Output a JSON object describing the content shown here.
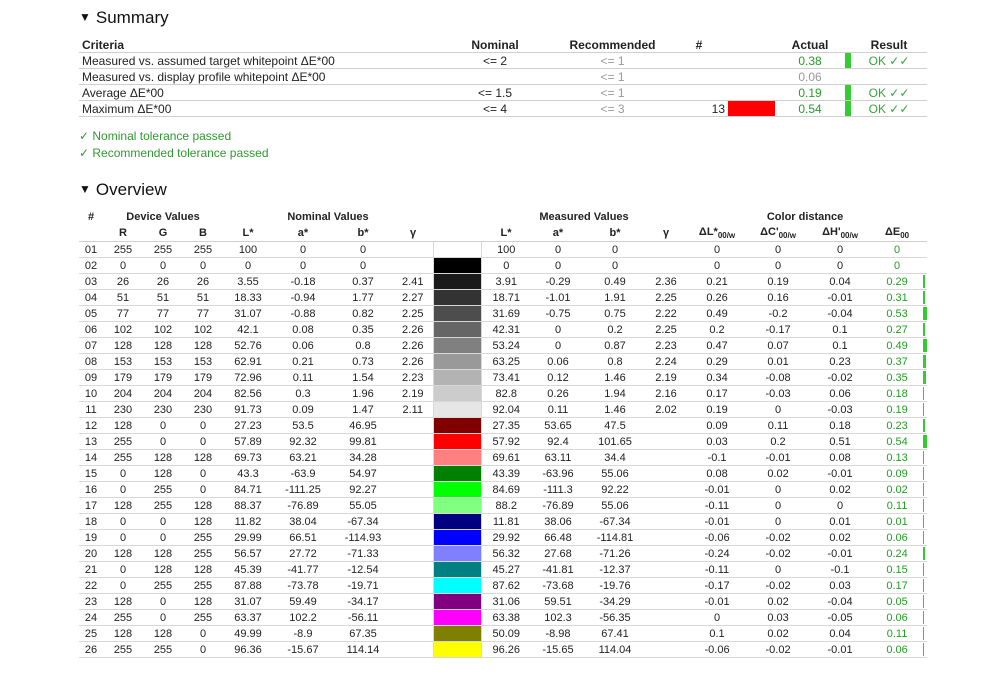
{
  "summary": {
    "heading": "Summary",
    "headers": [
      "Criteria",
      "Nominal",
      "Recommended",
      "#",
      "Actual",
      "Result"
    ],
    "rows": [
      {
        "criteria": "Measured vs. assumed target whitepoint ΔE*00",
        "nominal": "<= 2",
        "recommended": "<= 1",
        "num": "",
        "swatch": "",
        "actual": "0.38",
        "actual_green": true,
        "bar": true,
        "result": "OK ✓✓"
      },
      {
        "criteria": "Measured vs. display profile whitepoint ΔE*00",
        "nominal": "",
        "recommended": "<= 1",
        "num": "",
        "swatch": "",
        "actual": "0.06",
        "actual_green": false,
        "bar": false,
        "result": ""
      },
      {
        "criteria": "Average ΔE*00",
        "nominal": "<= 1.5",
        "recommended": "<= 1",
        "num": "",
        "swatch": "",
        "actual": "0.19",
        "actual_green": true,
        "bar": true,
        "result": "OK ✓✓"
      },
      {
        "criteria": "Maximum ΔE*00",
        "nominal": "<= 4",
        "recommended": "<= 3",
        "num": "13",
        "swatch": "#ff0000",
        "actual": "0.54",
        "actual_green": true,
        "bar": true,
        "result": "OK ✓✓"
      }
    ],
    "passed": [
      "✓ Nominal tolerance passed",
      "✓ Recommended tolerance passed"
    ]
  },
  "overview": {
    "heading": "Overview",
    "groups": {
      "num": "#",
      "device": "Device Values",
      "nominal": "Nominal Values",
      "measured": "Measured Values",
      "distance": "Color distance"
    },
    "sub": {
      "R": "R",
      "G": "G",
      "B": "B",
      "L": "L*",
      "a": "a*",
      "b": "b*",
      "gamma": "γ",
      "dL": "ΔL*",
      "dC": "ΔC'",
      "dH": "ΔH'",
      "dE": "ΔE",
      "w": "00/w",
      "e00": "00"
    },
    "bar_max": 0.54,
    "rows": [
      [
        "01",
        "255",
        "255",
        "255",
        "100",
        "0",
        "0",
        "",
        "#ffffff",
        "100",
        "0",
        "0",
        "",
        "0",
        "0",
        "0",
        "0"
      ],
      [
        "02",
        "0",
        "0",
        "0",
        "0",
        "0",
        "0",
        "",
        "#000000",
        "0",
        "0",
        "0",
        "",
        "0",
        "0",
        "0",
        "0"
      ],
      [
        "03",
        "26",
        "26",
        "26",
        "3.55",
        "-0.18",
        "0.37",
        "2.41",
        "#1a1a1a",
        "3.91",
        "-0.29",
        "0.49",
        "2.36",
        "0.21",
        "0.19",
        "0.04",
        "0.29"
      ],
      [
        "04",
        "51",
        "51",
        "51",
        "18.33",
        "-0.94",
        "1.77",
        "2.27",
        "#333333",
        "18.71",
        "-1.01",
        "1.91",
        "2.25",
        "0.26",
        "0.16",
        "-0.01",
        "0.31"
      ],
      [
        "05",
        "77",
        "77",
        "77",
        "31.07",
        "-0.88",
        "0.82",
        "2.25",
        "#4d4d4d",
        "31.69",
        "-0.75",
        "0.75",
        "2.22",
        "0.49",
        "-0.2",
        "-0.04",
        "0.53"
      ],
      [
        "06",
        "102",
        "102",
        "102",
        "42.1",
        "0.08",
        "0.35",
        "2.26",
        "#666666",
        "42.31",
        "0",
        "0.2",
        "2.25",
        "0.2",
        "-0.17",
        "0.1",
        "0.27"
      ],
      [
        "07",
        "128",
        "128",
        "128",
        "52.76",
        "0.06",
        "0.8",
        "2.26",
        "#808080",
        "53.24",
        "0",
        "0.87",
        "2.23",
        "0.47",
        "0.07",
        "0.1",
        "0.49"
      ],
      [
        "08",
        "153",
        "153",
        "153",
        "62.91",
        "0.21",
        "0.73",
        "2.26",
        "#999999",
        "63.25",
        "0.06",
        "0.8",
        "2.24",
        "0.29",
        "0.01",
        "0.23",
        "0.37"
      ],
      [
        "09",
        "179",
        "179",
        "179",
        "72.96",
        "0.11",
        "1.54",
        "2.23",
        "#b3b3b3",
        "73.41",
        "0.12",
        "1.46",
        "2.19",
        "0.34",
        "-0.08",
        "-0.02",
        "0.35"
      ],
      [
        "10",
        "204",
        "204",
        "204",
        "82.56",
        "0.3",
        "1.96",
        "2.19",
        "#cccccc",
        "82.8",
        "0.26",
        "1.94",
        "2.16",
        "0.17",
        "-0.03",
        "0.06",
        "0.18"
      ],
      [
        "11",
        "230",
        "230",
        "230",
        "91.73",
        "0.09",
        "1.47",
        "2.11",
        "#e6e6e6",
        "92.04",
        "0.11",
        "1.46",
        "2.02",
        "0.19",
        "0",
        "-0.03",
        "0.19"
      ],
      [
        "12",
        "128",
        "0",
        "0",
        "27.23",
        "53.5",
        "46.95",
        "",
        "#800000",
        "27.35",
        "53.65",
        "47.5",
        "",
        "0.09",
        "0.11",
        "0.18",
        "0.23"
      ],
      [
        "13",
        "255",
        "0",
        "0",
        "57.89",
        "92.32",
        "99.81",
        "",
        "#ff0000",
        "57.92",
        "92.4",
        "101.65",
        "",
        "0.03",
        "0.2",
        "0.51",
        "0.54"
      ],
      [
        "14",
        "255",
        "128",
        "128",
        "69.73",
        "63.21",
        "34.28",
        "",
        "#ff8080",
        "69.61",
        "63.11",
        "34.4",
        "",
        "-0.1",
        "-0.01",
        "0.08",
        "0.13"
      ],
      [
        "15",
        "0",
        "128",
        "0",
        "43.3",
        "-63.9",
        "54.97",
        "",
        "#008000",
        "43.39",
        "-63.96",
        "55.06",
        "",
        "0.08",
        "0.02",
        "-0.01",
        "0.09"
      ],
      [
        "16",
        "0",
        "255",
        "0",
        "84.71",
        "-111.25",
        "92.27",
        "",
        "#00ff00",
        "84.69",
        "-111.3",
        "92.22",
        "",
        "-0.01",
        "0",
        "0.02",
        "0.02"
      ],
      [
        "17",
        "128",
        "255",
        "128",
        "88.37",
        "-76.89",
        "55.05",
        "",
        "#80ff80",
        "88.2",
        "-76.89",
        "55.06",
        "",
        "-0.11",
        "0",
        "0",
        "0.11"
      ],
      [
        "18",
        "0",
        "0",
        "128",
        "11.82",
        "38.04",
        "-67.34",
        "",
        "#000080",
        "11.81",
        "38.06",
        "-67.34",
        "",
        "-0.01",
        "0",
        "0.01",
        "0.01"
      ],
      [
        "19",
        "0",
        "0",
        "255",
        "29.99",
        "66.51",
        "-114.93",
        "",
        "#0000ff",
        "29.92",
        "66.48",
        "-114.81",
        "",
        "-0.06",
        "-0.02",
        "0.02",
        "0.06"
      ],
      [
        "20",
        "128",
        "128",
        "255",
        "56.57",
        "27.72",
        "-71.33",
        "",
        "#8080ff",
        "56.32",
        "27.68",
        "-71.26",
        "",
        "-0.24",
        "-0.02",
        "-0.01",
        "0.24"
      ],
      [
        "21",
        "0",
        "128",
        "128",
        "45.39",
        "-41.77",
        "-12.54",
        "",
        "#008080",
        "45.27",
        "-41.81",
        "-12.37",
        "",
        "-0.11",
        "0",
        "-0.1",
        "0.15"
      ],
      [
        "22",
        "0",
        "255",
        "255",
        "87.88",
        "-73.78",
        "-19.71",
        "",
        "#00ffff",
        "87.62",
        "-73.68",
        "-19.76",
        "",
        "-0.17",
        "-0.02",
        "0.03",
        "0.17"
      ],
      [
        "23",
        "128",
        "0",
        "128",
        "31.07",
        "59.49",
        "-34.17",
        "",
        "#800080",
        "31.06",
        "59.51",
        "-34.29",
        "",
        "-0.01",
        "0.02",
        "-0.04",
        "0.05"
      ],
      [
        "24",
        "255",
        "0",
        "255",
        "63.37",
        "102.2",
        "-56.11",
        "",
        "#ff00ff",
        "63.38",
        "102.3",
        "-56.35",
        "",
        "0",
        "0.03",
        "-0.05",
        "0.06"
      ],
      [
        "25",
        "128",
        "128",
        "0",
        "49.99",
        "-8.9",
        "67.35",
        "",
        "#808000",
        "50.09",
        "-8.98",
        "67.41",
        "",
        "0.1",
        "0.02",
        "0.04",
        "0.11"
      ],
      [
        "26",
        "255",
        "255",
        "0",
        "96.36",
        "-15.67",
        "114.14",
        "",
        "#ffff00",
        "96.26",
        "-15.65",
        "114.04",
        "",
        "-0.06",
        "-0.02",
        "-0.01",
        "0.06"
      ]
    ]
  }
}
